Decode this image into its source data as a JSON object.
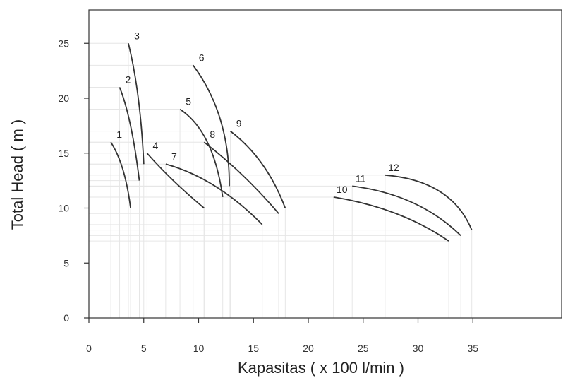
{
  "chart_data": {
    "type": "line",
    "xlabel": "Kapasitas ( x 100 l/min )",
    "ylabel": "Total Head ( m )",
    "xlim": [
      0,
      43
    ],
    "ylim": [
      0,
      28
    ],
    "xticks": [
      0,
      5,
      10,
      15,
      20,
      25,
      30,
      35
    ],
    "yticks": [
      0,
      5,
      10,
      15,
      20,
      25
    ],
    "grid": false,
    "series": [
      {
        "name": "1",
        "points": [
          [
            2.0,
            16.0
          ],
          [
            3.1,
            13.5
          ],
          [
            3.8,
            10.0
          ]
        ]
      },
      {
        "name": "2",
        "points": [
          [
            2.8,
            21.0
          ],
          [
            3.8,
            17.5
          ],
          [
            4.6,
            12.5
          ]
        ]
      },
      {
        "name": "3",
        "points": [
          [
            3.6,
            25.0
          ],
          [
            4.5,
            20.0
          ],
          [
            5.0,
            14.0
          ]
        ]
      },
      {
        "name": "4",
        "points": [
          [
            5.3,
            15.0
          ],
          [
            7.7,
            12.5
          ],
          [
            10.5,
            10.0
          ]
        ]
      },
      {
        "name": "5",
        "points": [
          [
            8.3,
            19.0
          ],
          [
            10.8,
            16.0
          ],
          [
            12.2,
            11.0
          ]
        ]
      },
      {
        "name": "6",
        "points": [
          [
            9.5,
            23.0
          ],
          [
            12.0,
            18.0
          ],
          [
            12.8,
            12.0
          ]
        ]
      },
      {
        "name": "7",
        "points": [
          [
            7.0,
            14.0
          ],
          [
            11.5,
            12.0
          ],
          [
            15.8,
            8.5
          ]
        ]
      },
      {
        "name": "8",
        "points": [
          [
            10.5,
            16.0
          ],
          [
            14.0,
            13.0
          ],
          [
            17.3,
            9.5
          ]
        ]
      },
      {
        "name": "9",
        "points": [
          [
            12.9,
            17.0
          ],
          [
            15.8,
            14.0
          ],
          [
            17.9,
            10.0
          ]
        ]
      },
      {
        "name": "10",
        "points": [
          [
            22.3,
            11.0
          ],
          [
            28.0,
            9.5
          ],
          [
            32.8,
            7.0
          ]
        ]
      },
      {
        "name": "11",
        "points": [
          [
            24.0,
            12.0
          ],
          [
            29.5,
            10.5
          ],
          [
            33.9,
            7.5
          ]
        ]
      },
      {
        "name": "12",
        "points": [
          [
            27.0,
            13.0
          ],
          [
            32.0,
            11.5
          ],
          [
            34.9,
            8.0
          ]
        ]
      }
    ]
  }
}
